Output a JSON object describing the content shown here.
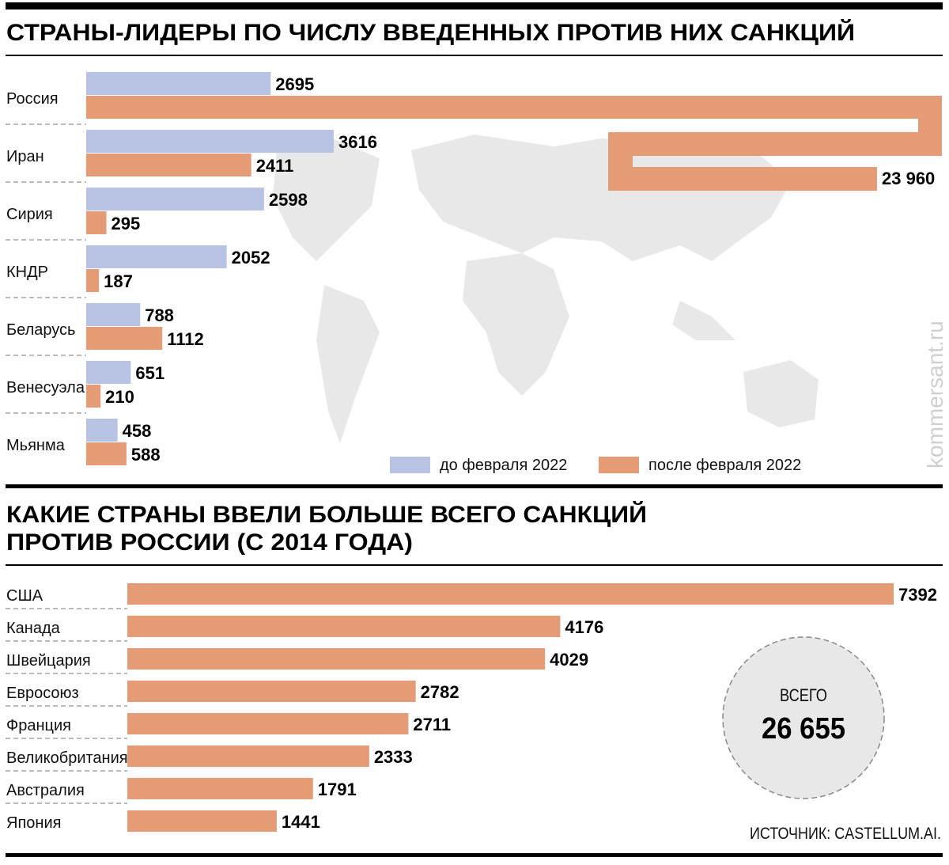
{
  "colors": {
    "before": "#b8c2e2",
    "after": "#e59b75",
    "map": "#e8e8e8",
    "circle": "#e8e8e8"
  },
  "watermark": "kommersant.ru",
  "chart_data": [
    {
      "type": "bar",
      "orientation": "horizontal",
      "title": "СТРАНЫ-ЛИДЕРЫ ПО ЧИСЛУ ВВЕДЕННЫХ ПРОТИВ НИХ САНКЦИЙ",
      "categories": [
        "Россия",
        "Иран",
        "Сирия",
        "КНДР",
        "Беларусь",
        "Венесуэла",
        "Мьянма"
      ],
      "series": [
        {
          "name": "до февраля 2022",
          "values": [
            2695,
            3616,
            2598,
            2052,
            788,
            651,
            458
          ],
          "labels": [
            "2695",
            "3616",
            "2598",
            "2052",
            "788",
            "651",
            "458"
          ]
        },
        {
          "name": "после февраля 2022",
          "values": [
            23960,
            2411,
            295,
            187,
            1112,
            210,
            588
          ],
          "labels": [
            "23 960",
            "2411",
            "295",
            "187",
            "1112",
            "210",
            "588"
          ]
        }
      ],
      "legend_placement": "bottom-right",
      "background": "world map"
    },
    {
      "type": "bar",
      "orientation": "horizontal",
      "title_lines": [
        "КАКИЕ СТРАНЫ ВВЕЛИ БОЛЬШЕ ВСЕГО САНКЦИЙ",
        "ПРОТИВ РОССИИ (С 2014 ГОДА)"
      ],
      "categories": [
        "США",
        "Канада",
        "Швейцария",
        "Евросоюз",
        "Франция",
        "Великобритания",
        "Австралия",
        "Япония"
      ],
      "values": [
        7392,
        4176,
        4029,
        2782,
        2711,
        2333,
        1791,
        1441
      ],
      "total": {
        "label": "ВСЕГО",
        "value": "26 655"
      },
      "source": "ИСТОЧНИК: CASTELLUM.AI."
    }
  ]
}
